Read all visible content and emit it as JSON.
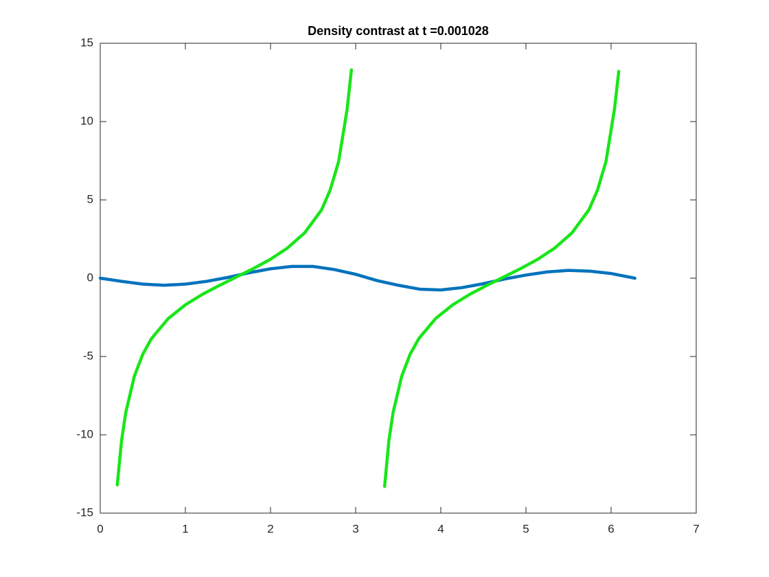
{
  "chart_data": {
    "type": "line",
    "title": "Density contrast at t =0.001028",
    "series": [
      {
        "color": "#0072bd",
        "x": [
          0,
          0.25,
          0.5,
          0.75,
          1.0,
          1.25,
          1.5,
          1.75,
          2.0,
          2.25,
          2.5,
          2.75,
          3.0,
          3.25,
          3.5,
          3.75,
          4.0,
          4.25,
          4.5,
          4.75,
          5.0,
          5.25,
          5.5,
          5.75,
          6.0,
          6.28
        ],
        "values": [
          0,
          -0.2,
          -0.38,
          -0.45,
          -0.38,
          -0.2,
          0.05,
          0.35,
          0.6,
          0.75,
          0.75,
          0.55,
          0.25,
          -0.15,
          -0.45,
          -0.7,
          -0.75,
          -0.6,
          -0.35,
          -0.05,
          0.2,
          0.4,
          0.5,
          0.45,
          0.3,
          0
        ]
      },
      {
        "color": "#19e619",
        "x": [
          0.2,
          0.25,
          0.3,
          0.4,
          0.5,
          0.6,
          0.8,
          1.0,
          1.2,
          1.4,
          1.6,
          1.8,
          2.0,
          2.2,
          2.4,
          2.6,
          2.7,
          2.8,
          2.9,
          2.95,
          3.1,
          3.34,
          3.39,
          3.44,
          3.54,
          3.64,
          3.74,
          3.94,
          4.14,
          4.34,
          4.54,
          4.74,
          4.94,
          5.14,
          5.34,
          5.54,
          5.74,
          5.84,
          5.94,
          6.04,
          6.09
        ],
        "values": [
          -13.2,
          -10.38,
          -8.57,
          -6.27,
          -4.85,
          -3.87,
          -2.57,
          -1.7,
          -1.03,
          -0.46,
          0.08,
          0.62,
          1.21,
          1.93,
          2.89,
          4.37,
          5.62,
          7.45,
          10.8,
          13.3,
          null,
          -13.3,
          -10.38,
          -8.57,
          -6.27,
          -4.85,
          -3.87,
          -2.57,
          -1.7,
          -1.03,
          -0.46,
          0.08,
          0.62,
          1.21,
          1.93,
          2.89,
          4.37,
          5.62,
          7.45,
          10.8,
          13.2
        ]
      }
    ],
    "xlim": [
      0,
      7
    ],
    "xticks": [
      0,
      1,
      2,
      3,
      4,
      5,
      6,
      7
    ],
    "ylim": [
      -15,
      15
    ],
    "yticks": [
      -15,
      -10,
      -5,
      0,
      5,
      10,
      15
    ],
    "grid": false
  }
}
